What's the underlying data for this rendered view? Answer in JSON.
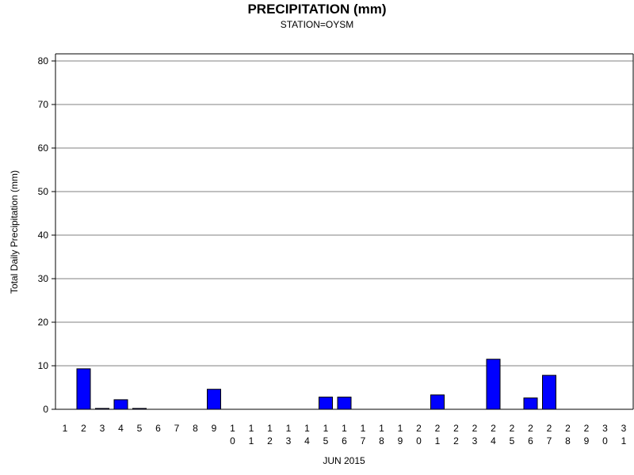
{
  "chart_data": {
    "type": "bar",
    "title": "PRECIPITATION (mm)",
    "subtitle": "STATION=OYSM",
    "xlabel": "JUN 2015",
    "ylabel": "Total Daily Precipitation (mm)",
    "ylim": [
      0,
      80
    ],
    "yticks": [
      0,
      10,
      20,
      30,
      40,
      50,
      60,
      70,
      80
    ],
    "grid": true,
    "categories": [
      "1",
      "2",
      "3",
      "4",
      "5",
      "6",
      "7",
      "8",
      "9",
      "10",
      "11",
      "12",
      "13",
      "14",
      "15",
      "16",
      "17",
      "18",
      "19",
      "20",
      "21",
      "22",
      "23",
      "24",
      "25",
      "26",
      "27",
      "28",
      "29",
      "30",
      "31"
    ],
    "values": [
      0,
      9.3,
      0.2,
      2.2,
      0.2,
      0,
      0,
      0,
      4.6,
      0,
      0,
      0,
      0,
      0,
      2.8,
      2.8,
      0,
      0,
      0,
      0,
      3.3,
      0,
      0,
      11.5,
      0,
      2.6,
      7.8,
      0,
      0,
      0,
      0
    ],
    "bar_color": "#0000ff"
  }
}
